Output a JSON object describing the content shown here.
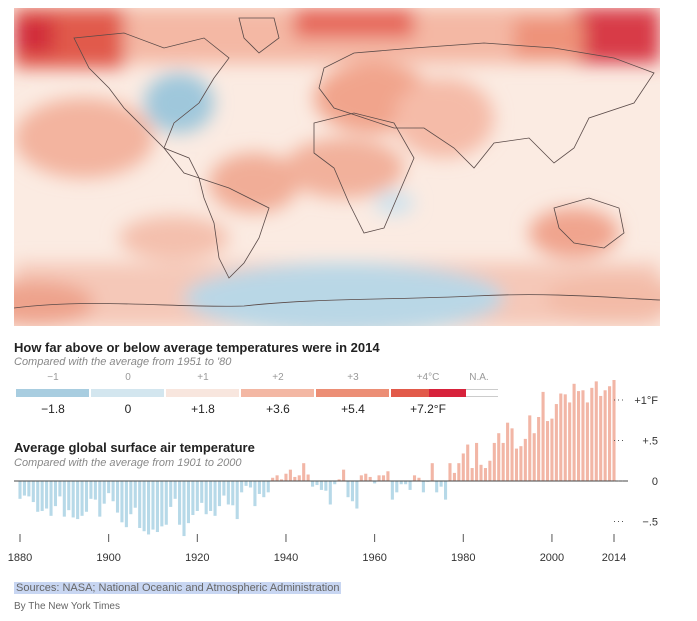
{
  "map": {
    "title": "How far above or below average temperatures were in 2014",
    "subtitle": "Compared with the average from 1951 to '80",
    "legend": {
      "celsius_labels": [
        "−1",
        "0",
        "+1",
        "+2",
        "+3",
        "+4°C",
        "N.A."
      ],
      "fahrenheit_labels": [
        "−1.8",
        "0",
        "+1.8",
        "+3.6",
        "+5.4",
        "+7.2°F"
      ],
      "colors": [
        "#a8cde0",
        "#d3e6ef",
        "#f8e6de",
        "#f3b7a3",
        "#ec8e75",
        "#e25a4a",
        "#d7223b",
        "#ffffff"
      ]
    }
  },
  "chart": {
    "title": "Average global surface air temperature",
    "subtitle": "Compared with the average from 1901 to 2000"
  },
  "chart_data": {
    "type": "bar",
    "unit": "°F",
    "x": [
      1880,
      1881,
      1882,
      1883,
      1884,
      1885,
      1886,
      1887,
      1888,
      1889,
      1890,
      1891,
      1892,
      1893,
      1894,
      1895,
      1896,
      1897,
      1898,
      1899,
      1900,
      1901,
      1902,
      1903,
      1904,
      1905,
      1906,
      1907,
      1908,
      1909,
      1910,
      1911,
      1912,
      1913,
      1914,
      1915,
      1916,
      1917,
      1918,
      1919,
      1920,
      1921,
      1922,
      1923,
      1924,
      1925,
      1926,
      1927,
      1928,
      1929,
      1930,
      1931,
      1932,
      1933,
      1934,
      1935,
      1936,
      1937,
      1938,
      1939,
      1940,
      1941,
      1942,
      1943,
      1944,
      1945,
      1946,
      1947,
      1948,
      1949,
      1950,
      1951,
      1952,
      1953,
      1954,
      1955,
      1956,
      1957,
      1958,
      1959,
      1960,
      1961,
      1962,
      1963,
      1964,
      1965,
      1966,
      1967,
      1968,
      1969,
      1970,
      1971,
      1972,
      1973,
      1974,
      1975,
      1976,
      1977,
      1978,
      1979,
      1980,
      1981,
      1982,
      1983,
      1984,
      1985,
      1986,
      1987,
      1988,
      1989,
      1990,
      1991,
      1992,
      1993,
      1994,
      1995,
      1996,
      1997,
      1998,
      1999,
      2000,
      2001,
      2002,
      2003,
      2004,
      2005,
      2006,
      2007,
      2008,
      2009,
      2010,
      2011,
      2012,
      2013,
      2014
    ],
    "values": [
      -0.22,
      -0.18,
      -0.19,
      -0.26,
      -0.38,
      -0.37,
      -0.34,
      -0.43,
      -0.31,
      -0.19,
      -0.44,
      -0.36,
      -0.45,
      -0.47,
      -0.43,
      -0.38,
      -0.22,
      -0.23,
      -0.44,
      -0.28,
      -0.15,
      -0.25,
      -0.39,
      -0.51,
      -0.57,
      -0.41,
      -0.33,
      -0.58,
      -0.62,
      -0.66,
      -0.6,
      -0.63,
      -0.56,
      -0.54,
      -0.32,
      -0.22,
      -0.54,
      -0.68,
      -0.52,
      -0.42,
      -0.37,
      -0.27,
      -0.41,
      -0.37,
      -0.43,
      -0.31,
      -0.18,
      -0.29,
      -0.3,
      -0.47,
      -0.14,
      -0.06,
      -0.08,
      -0.31,
      -0.16,
      -0.2,
      -0.14,
      0.04,
      0.07,
      0.02,
      0.09,
      0.14,
      0.05,
      0.07,
      0.22,
      0.08,
      -0.07,
      -0.05,
      -0.11,
      -0.12,
      -0.29,
      -0.04,
      0.02,
      0.14,
      -0.2,
      -0.25,
      -0.34,
      0.07,
      0.09,
      0.05,
      -0.03,
      0.07,
      0.07,
      0.12,
      -0.23,
      -0.14,
      -0.04,
      -0.04,
      -0.11,
      0.07,
      0.04,
      -0.14,
      -0.01,
      0.22,
      -0.14,
      -0.07,
      -0.23,
      0.22,
      0.1,
      0.22,
      0.34,
      0.45,
      0.16,
      0.47,
      0.2,
      0.16,
      0.25,
      0.47,
      0.59,
      0.47,
      0.72,
      0.65,
      0.4,
      0.43,
      0.52,
      0.81,
      0.59,
      0.79,
      1.1,
      0.74,
      0.77,
      0.95,
      1.08,
      1.07,
      0.97,
      1.2,
      1.11,
      1.12,
      0.97,
      1.15,
      1.23,
      1.05,
      1.12,
      1.17,
      1.31
    ],
    "xticks": [
      "1880",
      "1900",
      "1920",
      "1940",
      "1960",
      "1980",
      "2000",
      "2014"
    ],
    "yticks": [
      "+1°F",
      "+.5",
      "0",
      "−.5"
    ],
    "ylim": [
      -0.72,
      1.4
    ],
    "positive_color": "#f2b6a6",
    "negative_color": "#b7d9e8"
  },
  "footer": {
    "sources": "Sources: NASA; National Oceanic and Atmospheric Administration",
    "byline": "By The New York Times"
  }
}
